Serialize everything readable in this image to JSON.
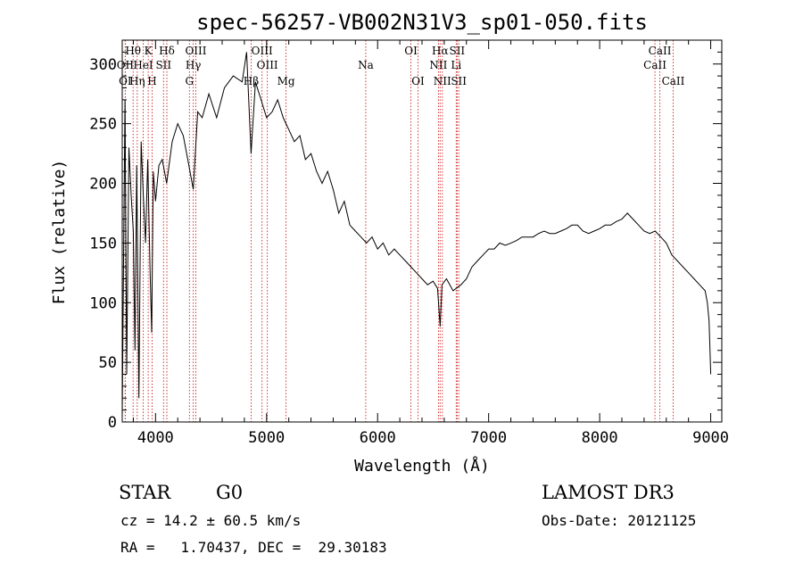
{
  "chart_data": {
    "type": "line",
    "title": "spec-56257-VB002N31V3_sp01-050.fits",
    "xlabel": "Wavelength (Å)",
    "ylabel": "Flux (relative)",
    "xlim": [
      3700,
      9100
    ],
    "ylim": [
      0,
      320
    ],
    "grid": false,
    "x_ticks": [
      4000,
      5000,
      6000,
      7000,
      8000,
      9000
    ],
    "y_ticks": [
      0,
      50,
      100,
      150,
      200,
      250,
      300
    ],
    "x_minor_step": 200,
    "y_minor_step": 10,
    "series": [
      {
        "name": "flux",
        "x": [
          3700,
          3710,
          3725,
          3740,
          3760,
          3780,
          3800,
          3815,
          3830,
          3850,
          3870,
          3890,
          3910,
          3930,
          3950,
          3965,
          3980,
          4000,
          4030,
          4060,
          4100,
          4150,
          4200,
          4250,
          4300,
          4340,
          4380,
          4420,
          4480,
          4550,
          4620,
          4700,
          4780,
          4820,
          4860,
          4900,
          4950,
          5000,
          5050,
          5100,
          5150,
          5200,
          5250,
          5300,
          5350,
          5400,
          5450,
          5500,
          5550,
          5600,
          5650,
          5700,
          5750,
          5800,
          5850,
          5900,
          5950,
          6000,
          6050,
          6100,
          6150,
          6200,
          6250,
          6300,
          6350,
          6400,
          6450,
          6500,
          6540,
          6563,
          6580,
          6620,
          6680,
          6750,
          6800,
          6850,
          6900,
          6950,
          7000,
          7050,
          7100,
          7150,
          7200,
          7250,
          7300,
          7350,
          7400,
          7450,
          7500,
          7550,
          7600,
          7650,
          7700,
          7750,
          7800,
          7850,
          7900,
          7950,
          8000,
          8050,
          8100,
          8150,
          8200,
          8250,
          8300,
          8350,
          8400,
          8450,
          8500,
          8550,
          8600,
          8650,
          8700,
          8750,
          8800,
          8850,
          8900,
          8950,
          8970,
          8985,
          9000
        ],
        "values": [
          5,
          110,
          270,
          40,
          230,
          190,
          160,
          60,
          215,
          20,
          235,
          190,
          150,
          220,
          130,
          75,
          210,
          185,
          215,
          220,
          200,
          235,
          250,
          240,
          215,
          195,
          260,
          255,
          275,
          255,
          280,
          290,
          285,
          310,
          225,
          285,
          270,
          255,
          260,
          270,
          255,
          245,
          235,
          240,
          220,
          225,
          210,
          200,
          210,
          195,
          175,
          185,
          165,
          160,
          155,
          150,
          155,
          145,
          150,
          140,
          145,
          140,
          135,
          130,
          125,
          120,
          115,
          118,
          112,
          80,
          115,
          120,
          110,
          115,
          120,
          130,
          135,
          140,
          145,
          145,
          150,
          148,
          150,
          152,
          155,
          155,
          155,
          158,
          160,
          158,
          158,
          160,
          162,
          165,
          165,
          160,
          158,
          160,
          162,
          165,
          165,
          168,
          170,
          175,
          170,
          165,
          160,
          158,
          160,
          155,
          150,
          140,
          135,
          130,
          125,
          120,
          115,
          110,
          100,
          85,
          40
        ]
      }
    ],
    "line_markers": [
      {
        "label": "Hθ",
        "x": 3798,
        "row": 0
      },
      {
        "label": "K",
        "x": 3934,
        "row": 0
      },
      {
        "label": "Hδ",
        "x": 4102,
        "row": 0
      },
      {
        "label": "OIII",
        "x": 4363,
        "row": 0
      },
      {
        "label": "OIII",
        "x": 4959,
        "row": 0
      },
      {
        "label": "OI",
        "x": 6300,
        "row": 0
      },
      {
        "label": "Hα",
        "x": 6563,
        "row": 0
      },
      {
        "label": "SII",
        "x": 6716,
        "row": 0
      },
      {
        "label": "CaII",
        "x": 8542,
        "row": 0
      },
      {
        "label": "OII",
        "x": 3727,
        "row": 1
      },
      {
        "label": "HeI",
        "x": 3889,
        "row": 1
      },
      {
        "label": "SII",
        "x": 4072,
        "row": 1
      },
      {
        "label": "Hγ",
        "x": 4340,
        "row": 1
      },
      {
        "label": "OIII",
        "x": 5007,
        "row": 1
      },
      {
        "label": "Na",
        "x": 5893,
        "row": 1
      },
      {
        "label": "NII",
        "x": 6548,
        "row": 1
      },
      {
        "label": "Li",
        "x": 6708,
        "row": 1
      },
      {
        "label": "CaII",
        "x": 8498,
        "row": 1
      },
      {
        "label": "OI",
        "x": 3727,
        "row": 2
      },
      {
        "label": "Hη",
        "x": 3835,
        "row": 2
      },
      {
        "label": "H",
        "x": 3969,
        "row": 2
      },
      {
        "label": "G",
        "x": 4305,
        "row": 2
      },
      {
        "label": "Hβ",
        "x": 4861,
        "row": 2
      },
      {
        "label": "Mg",
        "x": 5175,
        "row": 2
      },
      {
        "label": "OI",
        "x": 6364,
        "row": 2
      },
      {
        "label": "NII",
        "x": 6583,
        "row": 2
      },
      {
        "label": "SII",
        "x": 6731,
        "row": 2
      },
      {
        "label": "CaII",
        "x": 8662,
        "row": 2
      }
    ]
  },
  "info": {
    "object_class": "STAR",
    "subclass": "G0",
    "survey": "LAMOST DR3",
    "redshift_line": "cz = 14.2 ± 60.5 km/s",
    "obs_date_line": "Obs-Date: 20121125",
    "coords_line": "RA =   1.70437, DEC =  29.30183"
  },
  "colors": {
    "spectrum": "#000000",
    "line_markers": "#d02020",
    "background": "#ffffff"
  }
}
